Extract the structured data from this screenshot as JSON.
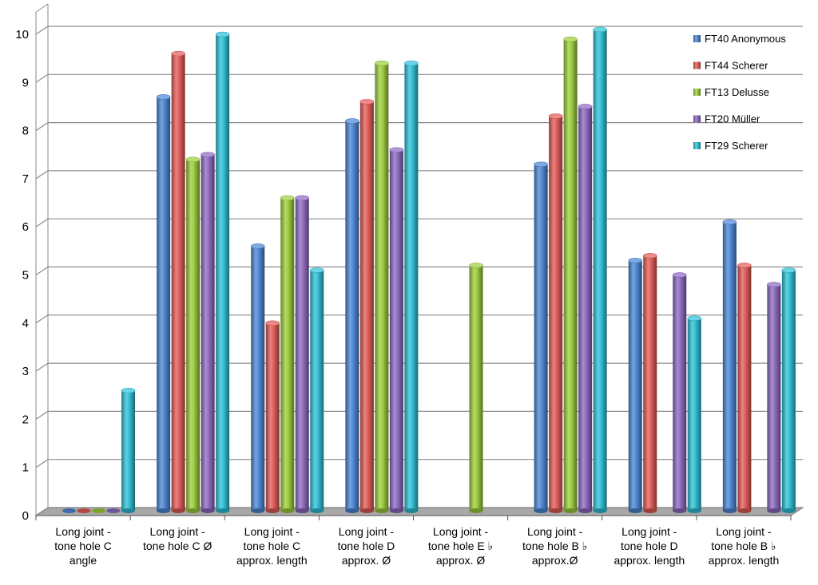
{
  "chart_data": {
    "type": "bar",
    "style": "3d-cylinder",
    "title": "",
    "xlabel": "",
    "ylabel": "",
    "ylim": [
      0,
      10
    ],
    "yticks": [
      "0",
      "1",
      "2",
      "3",
      "4",
      "5",
      "6",
      "7",
      "8",
      "9",
      "10"
    ],
    "grid": true,
    "legend_position": "top-right",
    "categories": [
      [
        "Long joint -",
        "tone hole C",
        "angle"
      ],
      [
        "Long joint -",
        "tone hole C Ø"
      ],
      [
        "Long joint -",
        "tone hole C",
        "approx. length"
      ],
      [
        "Long joint -",
        "tone hole D",
        "approx. Ø"
      ],
      [
        "Long joint -",
        "tone hole E ♭",
        "approx. Ø"
      ],
      [
        "Long joint -",
        "tone hole B ♭",
        "approx.Ø"
      ],
      [
        "Long joint -",
        "tone hole D",
        "approx. length"
      ],
      [
        "Long joint -",
        "tone hole B ♭",
        "approx. length"
      ]
    ],
    "series": [
      {
        "name": "FT40 Anonymous",
        "color": "#4a86d4",
        "values": [
          0,
          8.6,
          5.5,
          8.1,
          null,
          7.2,
          5.2,
          6.0
        ]
      },
      {
        "name": "FT44 Scherer",
        "color": "#e25a55",
        "values": [
          0,
          9.5,
          3.9,
          8.5,
          null,
          8.2,
          5.3,
          5.1
        ]
      },
      {
        "name": "FT13 Delusse",
        "color": "#9ccc3a",
        "values": [
          0,
          7.3,
          6.5,
          9.3,
          5.1,
          9.8,
          null,
          null
        ]
      },
      {
        "name": "FT20 Müller",
        "color": "#8c68c0",
        "values": [
          0,
          7.4,
          6.5,
          7.5,
          null,
          8.4,
          4.9,
          4.7
        ]
      },
      {
        "name": "FT29 Scherer",
        "color": "#2cc0d6",
        "values": [
          2.5,
          9.9,
          5.0,
          9.3,
          null,
          10.0,
          4.0,
          5.0
        ]
      }
    ]
  }
}
